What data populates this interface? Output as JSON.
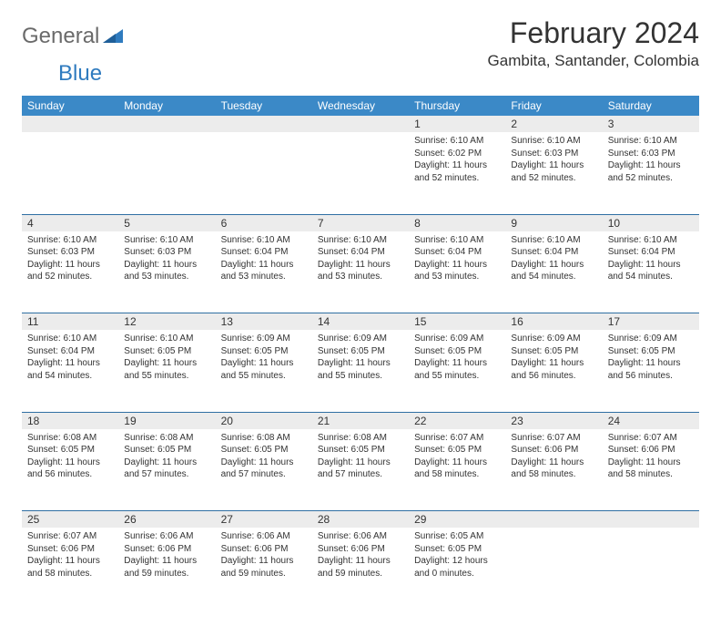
{
  "logo": {
    "text1": "General",
    "text2": "Blue"
  },
  "title": "February 2024",
  "location": "Gambita, Santander, Colombia",
  "colors": {
    "headerBg": "#3b89c7",
    "headerText": "#ffffff",
    "dayBarBg": "#ececec",
    "weekBorder": "#2f6fa3",
    "bodyText": "#333333",
    "logoGray": "#6a6a6a",
    "logoBlue": "#2f7bbf"
  },
  "dayHeaders": [
    "Sunday",
    "Monday",
    "Tuesday",
    "Wednesday",
    "Thursday",
    "Friday",
    "Saturday"
  ],
  "weeks": [
    [
      null,
      null,
      null,
      null,
      {
        "n": "1",
        "sr": "6:10 AM",
        "ss": "6:02 PM",
        "dl": "11 hours and 52 minutes."
      },
      {
        "n": "2",
        "sr": "6:10 AM",
        "ss": "6:03 PM",
        "dl": "11 hours and 52 minutes."
      },
      {
        "n": "3",
        "sr": "6:10 AM",
        "ss": "6:03 PM",
        "dl": "11 hours and 52 minutes."
      }
    ],
    [
      {
        "n": "4",
        "sr": "6:10 AM",
        "ss": "6:03 PM",
        "dl": "11 hours and 52 minutes."
      },
      {
        "n": "5",
        "sr": "6:10 AM",
        "ss": "6:03 PM",
        "dl": "11 hours and 53 minutes."
      },
      {
        "n": "6",
        "sr": "6:10 AM",
        "ss": "6:04 PM",
        "dl": "11 hours and 53 minutes."
      },
      {
        "n": "7",
        "sr": "6:10 AM",
        "ss": "6:04 PM",
        "dl": "11 hours and 53 minutes."
      },
      {
        "n": "8",
        "sr": "6:10 AM",
        "ss": "6:04 PM",
        "dl": "11 hours and 53 minutes."
      },
      {
        "n": "9",
        "sr": "6:10 AM",
        "ss": "6:04 PM",
        "dl": "11 hours and 54 minutes."
      },
      {
        "n": "10",
        "sr": "6:10 AM",
        "ss": "6:04 PM",
        "dl": "11 hours and 54 minutes."
      }
    ],
    [
      {
        "n": "11",
        "sr": "6:10 AM",
        "ss": "6:04 PM",
        "dl": "11 hours and 54 minutes."
      },
      {
        "n": "12",
        "sr": "6:10 AM",
        "ss": "6:05 PM",
        "dl": "11 hours and 55 minutes."
      },
      {
        "n": "13",
        "sr": "6:09 AM",
        "ss": "6:05 PM",
        "dl": "11 hours and 55 minutes."
      },
      {
        "n": "14",
        "sr": "6:09 AM",
        "ss": "6:05 PM",
        "dl": "11 hours and 55 minutes."
      },
      {
        "n": "15",
        "sr": "6:09 AM",
        "ss": "6:05 PM",
        "dl": "11 hours and 55 minutes."
      },
      {
        "n": "16",
        "sr": "6:09 AM",
        "ss": "6:05 PM",
        "dl": "11 hours and 56 minutes."
      },
      {
        "n": "17",
        "sr": "6:09 AM",
        "ss": "6:05 PM",
        "dl": "11 hours and 56 minutes."
      }
    ],
    [
      {
        "n": "18",
        "sr": "6:08 AM",
        "ss": "6:05 PM",
        "dl": "11 hours and 56 minutes."
      },
      {
        "n": "19",
        "sr": "6:08 AM",
        "ss": "6:05 PM",
        "dl": "11 hours and 57 minutes."
      },
      {
        "n": "20",
        "sr": "6:08 AM",
        "ss": "6:05 PM",
        "dl": "11 hours and 57 minutes."
      },
      {
        "n": "21",
        "sr": "6:08 AM",
        "ss": "6:05 PM",
        "dl": "11 hours and 57 minutes."
      },
      {
        "n": "22",
        "sr": "6:07 AM",
        "ss": "6:05 PM",
        "dl": "11 hours and 58 minutes."
      },
      {
        "n": "23",
        "sr": "6:07 AM",
        "ss": "6:06 PM",
        "dl": "11 hours and 58 minutes."
      },
      {
        "n": "24",
        "sr": "6:07 AM",
        "ss": "6:06 PM",
        "dl": "11 hours and 58 minutes."
      }
    ],
    [
      {
        "n": "25",
        "sr": "6:07 AM",
        "ss": "6:06 PM",
        "dl": "11 hours and 58 minutes."
      },
      {
        "n": "26",
        "sr": "6:06 AM",
        "ss": "6:06 PM",
        "dl": "11 hours and 59 minutes."
      },
      {
        "n": "27",
        "sr": "6:06 AM",
        "ss": "6:06 PM",
        "dl": "11 hours and 59 minutes."
      },
      {
        "n": "28",
        "sr": "6:06 AM",
        "ss": "6:06 PM",
        "dl": "11 hours and 59 minutes."
      },
      {
        "n": "29",
        "sr": "6:05 AM",
        "ss": "6:05 PM",
        "dl": "12 hours and 0 minutes."
      },
      null,
      null
    ]
  ],
  "labels": {
    "sunrise": "Sunrise: ",
    "sunset": "Sunset: ",
    "daylight": "Daylight: "
  }
}
